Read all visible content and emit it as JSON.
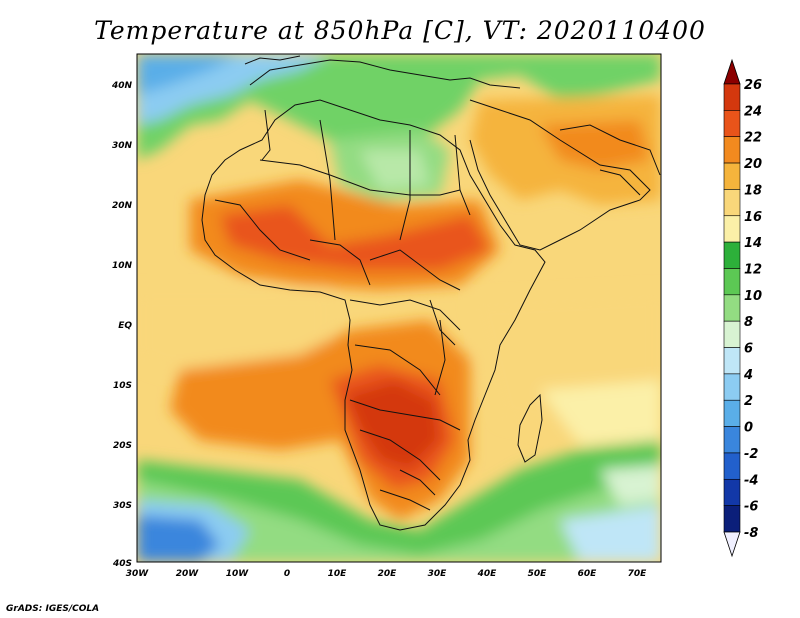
{
  "title": "Temperature at 850hPa [C], VT: 2020110400",
  "credit": "GrADS: IGES/COLA",
  "map": {
    "lat_ticks": [
      "40N",
      "30N",
      "20N",
      "10N",
      "EQ",
      "10S",
      "20S",
      "30S",
      "40S"
    ],
    "lon_ticks": [
      "30W",
      "20W",
      "10W",
      "0",
      "10E",
      "20E",
      "30E",
      "40E",
      "50E",
      "60E",
      "70E"
    ],
    "lat_range": [
      -40,
      45
    ],
    "lon_range": [
      -30,
      75
    ]
  },
  "colorbar": {
    "labels": [
      "26",
      "24",
      "22",
      "20",
      "18",
      "16",
      "14",
      "12",
      "10",
      "8",
      "6",
      "4",
      "2",
      "0",
      "-2",
      "-4",
      "-6",
      "-8"
    ],
    "colors": [
      "#8b0000",
      "#d4380e",
      "#e9541a",
      "#f28a1f",
      "#f5b43c",
      "#f9d77a",
      "#fbf0a8",
      "#2db03a",
      "#5cc854",
      "#93dc82",
      "#d8f3d2",
      "#bfe6f7",
      "#8cccf2",
      "#5aaee8",
      "#3a86dd",
      "#2260cc",
      "#1238a8",
      "#0b1f7a",
      "#0a0a52"
    ]
  }
}
